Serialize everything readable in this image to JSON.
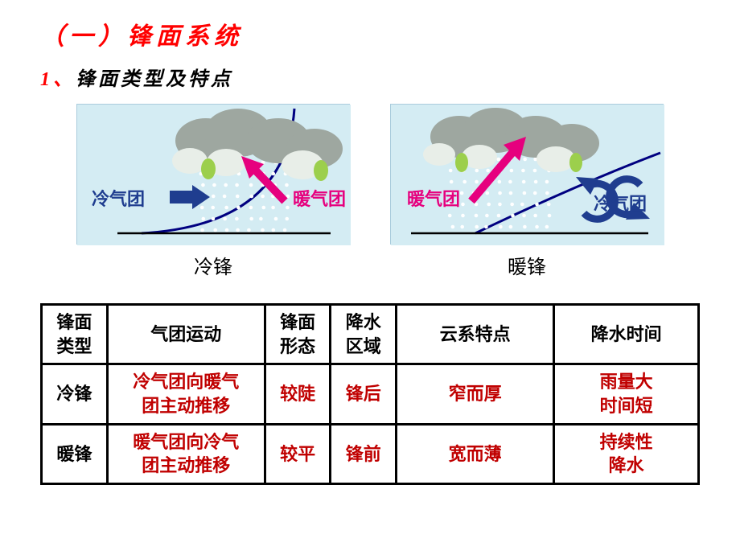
{
  "colors": {
    "title_red": "#ff0000",
    "body_black": "#000000",
    "data_red": "#c00000",
    "cold_blue": "#1f3d8f",
    "warm_pink": "#e6007e",
    "sky_bg": "#d4ecf3",
    "cloud_gray": "#9ea7a0",
    "cloud_light": "#e8eee8",
    "ground_black": "#000000",
    "front_line": "#000080",
    "precip_white": "#ffffff",
    "cloud_accent": "#9ccf4c"
  },
  "title": "（一）锋面系统",
  "subtitle_num": "1、",
  "subtitle_text": "锋面类型及特点",
  "diagrams": {
    "cold": {
      "caption": "冷锋",
      "cold_label": "冷气团",
      "warm_label": "暖气团"
    },
    "warm": {
      "caption": "暖锋",
      "cold_label": "冷气团",
      "warm_label": "暖气团"
    }
  },
  "table": {
    "headers": [
      "锋面\n类型",
      "气团运动",
      "锋面\n形态",
      "降水\n区域",
      "云系特点",
      "降水时间"
    ],
    "rows": [
      {
        "type": "冷锋",
        "motion": "冷气团向暖气\n团主动推移",
        "shape": "较陡",
        "region": "锋后",
        "clouds": "窄而厚",
        "precip": "雨量大\n时间短"
      },
      {
        "type": "暖锋",
        "motion": "暖气团向冷气\n团主动推移",
        "shape": "较平",
        "region": "锋前",
        "clouds": "宽而薄",
        "precip": "持续性\n降水"
      }
    ],
    "col_widths": [
      "10%",
      "24%",
      "10%",
      "10%",
      "24%",
      "22%"
    ]
  },
  "fonts": {
    "title_size": 30,
    "subtitle_size": 24,
    "caption_size": 24,
    "table_size": 22,
    "label_size": 22
  }
}
